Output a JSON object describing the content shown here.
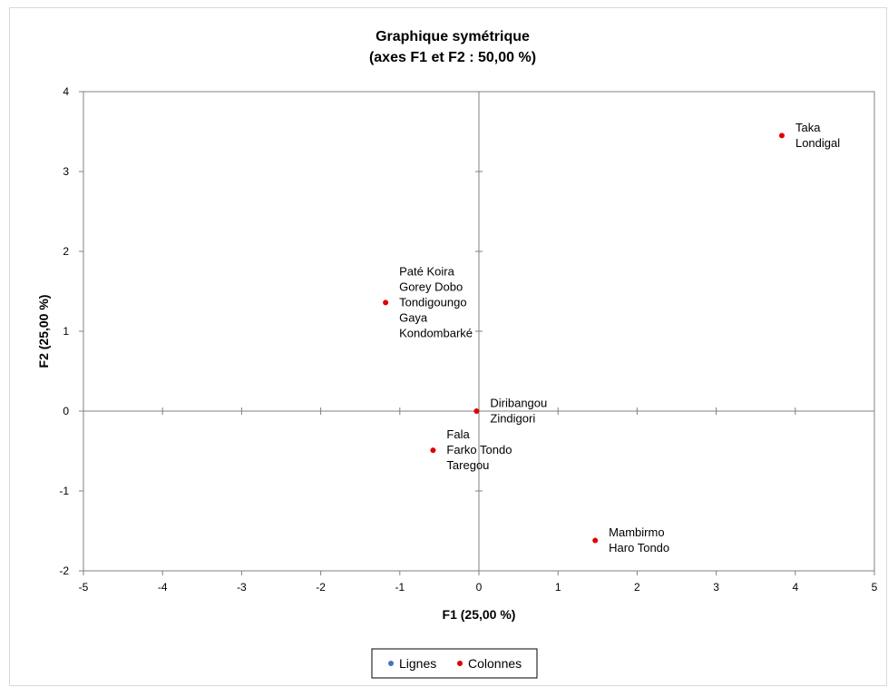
{
  "chart_data": {
    "type": "scatter",
    "title": "Graphique symétrique",
    "subtitle": "(axes F1 et F2 : 50,00 %)",
    "xlabel": "F1 (25,00 %)",
    "ylabel": "F2 (25,00 %)",
    "xlim": [
      -5,
      5
    ],
    "ylim": [
      -2,
      4
    ],
    "x_ticks": [
      "-5",
      "-4",
      "-3",
      "-2",
      "-1",
      "0",
      "1",
      "2",
      "3",
      "4",
      "5"
    ],
    "y_ticks": [
      "-2",
      "-1",
      "0",
      "1",
      "2",
      "3",
      "4"
    ],
    "grid": false,
    "legend_position": "bottom",
    "series": [
      {
        "name": "Lignes",
        "color": "#4472c4",
        "points": []
      },
      {
        "name": "Colonnes",
        "color": "#e00000",
        "points": [
          {
            "x": 3.83,
            "y": 3.45,
            "labels": [
              "Taka",
              "Londigal"
            ]
          },
          {
            "x": -1.18,
            "y": 1.36,
            "labels": [
              "Paté Koira",
              "Gorey Dobo",
              "Tondigoungo",
              "Gaya",
              "Kondombarké"
            ]
          },
          {
            "x": -0.03,
            "y": 0.0,
            "labels": [
              "Diribangou",
              "Zindigori"
            ]
          },
          {
            "x": -0.58,
            "y": -0.49,
            "labels": [
              "Fala",
              "Farko Tondo",
              "Taregou"
            ]
          },
          {
            "x": 1.47,
            "y": -1.62,
            "labels": [
              "Mambirmo",
              "Haro Tondo"
            ]
          }
        ]
      }
    ]
  }
}
